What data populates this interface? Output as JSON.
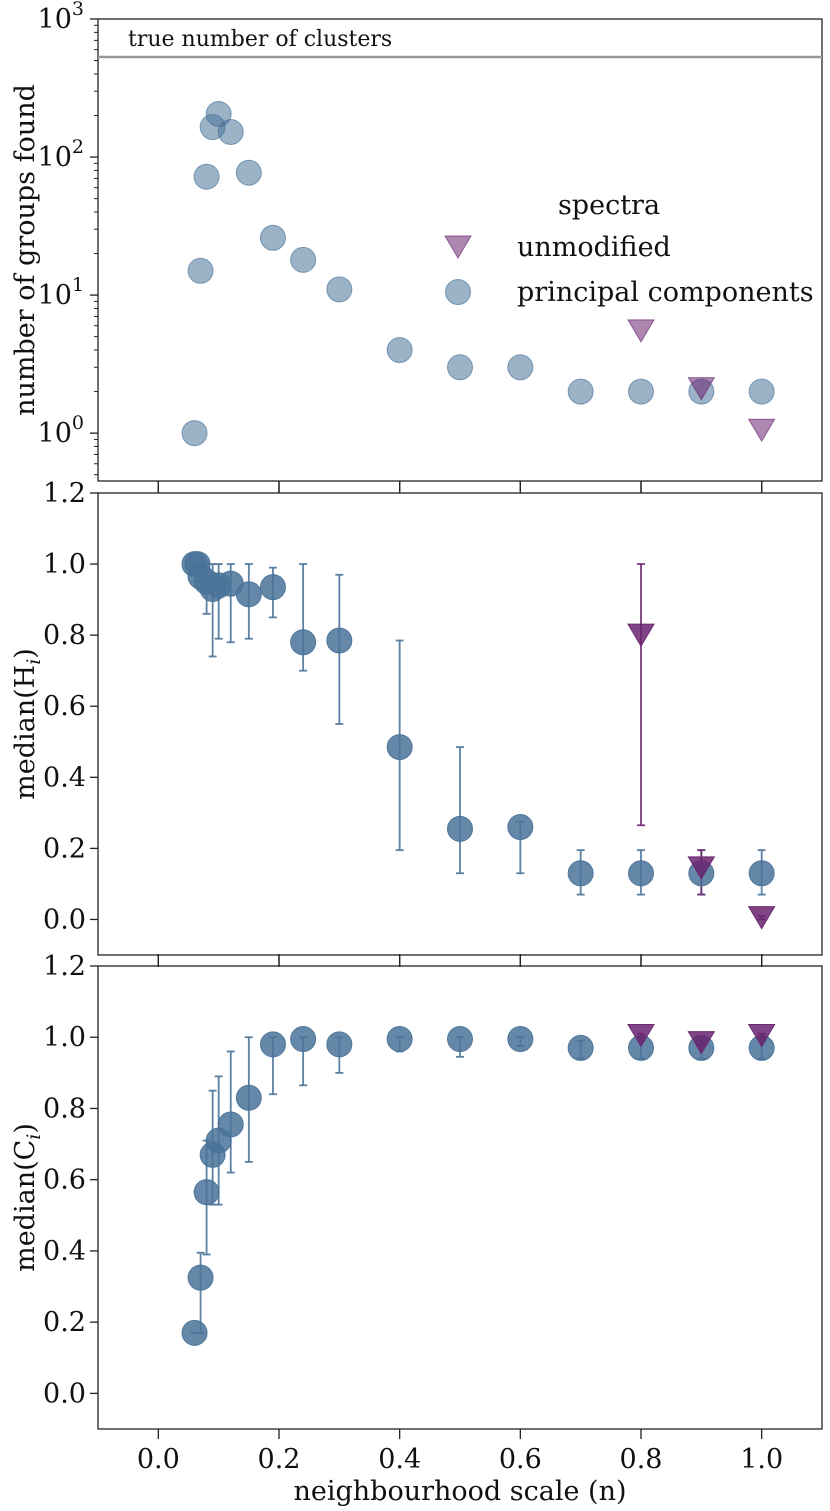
{
  "colors": {
    "pc": "#4a7399",
    "unmod": "#6a2570",
    "refline": "#9a9a9a"
  },
  "chart_data": [
    {
      "type": "scatter",
      "yscale": "log",
      "ylabel": "number of groups found",
      "xlabel": "",
      "xlim": [
        -0.1,
        1.1
      ],
      "ylim": [
        0.45,
        1000
      ],
      "y_ticks": [
        {
          "value": 1,
          "base": "10",
          "exp": "0"
        },
        {
          "value": 10,
          "base": "10",
          "exp": "1"
        },
        {
          "value": 100,
          "base": "10",
          "exp": "2"
        },
        {
          "value": 1000,
          "base": "10",
          "exp": "3"
        }
      ],
      "annotation": {
        "text": "true number of clusters",
        "y": 530
      },
      "legend": {
        "title": "spectra",
        "entries": [
          {
            "label": "unmodified",
            "series": "unmodified"
          },
          {
            "label": "principal components",
            "series": "principal components"
          }
        ]
      },
      "series": [
        {
          "name": "principal components",
          "marker": "circle",
          "alpha": 0.55,
          "x": [
            0.06,
            0.07,
            0.08,
            0.09,
            0.1,
            0.12,
            0.15,
            0.19,
            0.24,
            0.3,
            0.4,
            0.5,
            0.6,
            0.7,
            0.8,
            0.9,
            1.0
          ],
          "y": [
            1,
            15,
            72,
            165,
            205,
            152,
            77,
            26,
            18,
            11,
            4,
            3,
            3,
            2,
            2,
            2,
            2
          ]
        },
        {
          "name": "unmodified",
          "marker": "triangle-down",
          "alpha": 0.55,
          "x": [
            0.8,
            0.9,
            1.0
          ],
          "y": [
            5.5,
            2.1,
            1.05
          ]
        }
      ]
    },
    {
      "type": "scatter",
      "ylabel": "median(H",
      "ylabel_sub": "i",
      "ylabel_close": ")",
      "xlim": [
        -0.1,
        1.1
      ],
      "ylim": [
        -0.1,
        1.2
      ],
      "y_ticks": [
        "0.0",
        "0.2",
        "0.4",
        "0.6",
        "0.8",
        "1.0",
        "1.2"
      ],
      "series": [
        {
          "name": "principal components",
          "marker": "circle",
          "alpha": 0.85,
          "x": [
            0.06,
            0.065,
            0.07,
            0.08,
            0.09,
            0.1,
            0.12,
            0.15,
            0.19,
            0.24,
            0.3,
            0.4,
            0.5,
            0.6,
            0.7,
            0.8,
            0.9,
            1.0
          ],
          "y": [
            1.0,
            1.0,
            0.965,
            0.95,
            0.93,
            0.94,
            0.945,
            0.915,
            0.935,
            0.78,
            0.785,
            0.485,
            0.255,
            0.26,
            0.13,
            0.13,
            0.13,
            0.13
          ],
          "err_low": [
            1.0,
            1.0,
            0.93,
            0.86,
            0.74,
            0.79,
            0.78,
            0.79,
            0.85,
            0.7,
            0.55,
            0.195,
            0.13,
            0.13,
            0.07,
            0.07,
            0.07,
            0.07
          ],
          "err_high": [
            1.0,
            1.0,
            1.0,
            1.0,
            1.0,
            1.0,
            1.0,
            1.0,
            0.99,
            1.0,
            0.97,
            0.785,
            0.485,
            0.275,
            0.195,
            0.195,
            0.195,
            0.195
          ]
        },
        {
          "name": "unmodified",
          "marker": "triangle-down",
          "alpha": 0.85,
          "x": [
            0.8,
            0.9,
            1.0
          ],
          "y": [
            0.8,
            0.145,
            0.005
          ],
          "err_low": [
            0.265,
            0.07,
            0.0
          ],
          "err_high": [
            1.0,
            0.195,
            0.01
          ]
        }
      ]
    },
    {
      "type": "scatter",
      "ylabel": "median(C",
      "ylabel_sub": "i",
      "ylabel_close": ")",
      "xlabel": "neighbourhood scale (n)",
      "xlim": [
        -0.1,
        1.1
      ],
      "ylim": [
        -0.1,
        1.2
      ],
      "x_ticks": [
        "0.0",
        "0.2",
        "0.4",
        "0.6",
        "0.8",
        "1.0"
      ],
      "y_ticks": [
        "0.0",
        "0.2",
        "0.4",
        "0.6",
        "0.8",
        "1.0",
        "1.2"
      ],
      "series": [
        {
          "name": "principal components",
          "marker": "circle",
          "alpha": 0.85,
          "x": [
            0.06,
            0.07,
            0.08,
            0.09,
            0.1,
            0.12,
            0.15,
            0.19,
            0.24,
            0.3,
            0.4,
            0.5,
            0.6,
            0.7,
            0.8,
            0.9,
            1.0
          ],
          "y": [
            0.17,
            0.325,
            0.565,
            0.67,
            0.71,
            0.755,
            0.83,
            0.98,
            0.995,
            0.98,
            0.995,
            0.995,
            0.995,
            0.97,
            0.97,
            0.97,
            0.97
          ],
          "err_low": [
            0.17,
            0.17,
            0.39,
            0.53,
            0.53,
            0.62,
            0.65,
            0.84,
            0.865,
            0.9,
            0.96,
            0.945,
            0.975,
            0.94,
            0.94,
            0.94,
            0.94
          ],
          "err_high": [
            0.17,
            0.395,
            0.71,
            0.85,
            0.89,
            0.96,
            1.0,
            1.0,
            1.0,
            1.0,
            1.0,
            1.0,
            1.0,
            0.99,
            0.99,
            0.99,
            0.99
          ]
        },
        {
          "name": "unmodified",
          "marker": "triangle-down",
          "alpha": 0.85,
          "x": [
            0.8,
            0.9,
            1.0
          ],
          "y": [
            1.005,
            0.985,
            1.005
          ],
          "err_low": [
            1.0,
            0.98,
            1.0
          ],
          "err_high": [
            1.01,
            0.99,
            1.01
          ]
        }
      ]
    }
  ]
}
